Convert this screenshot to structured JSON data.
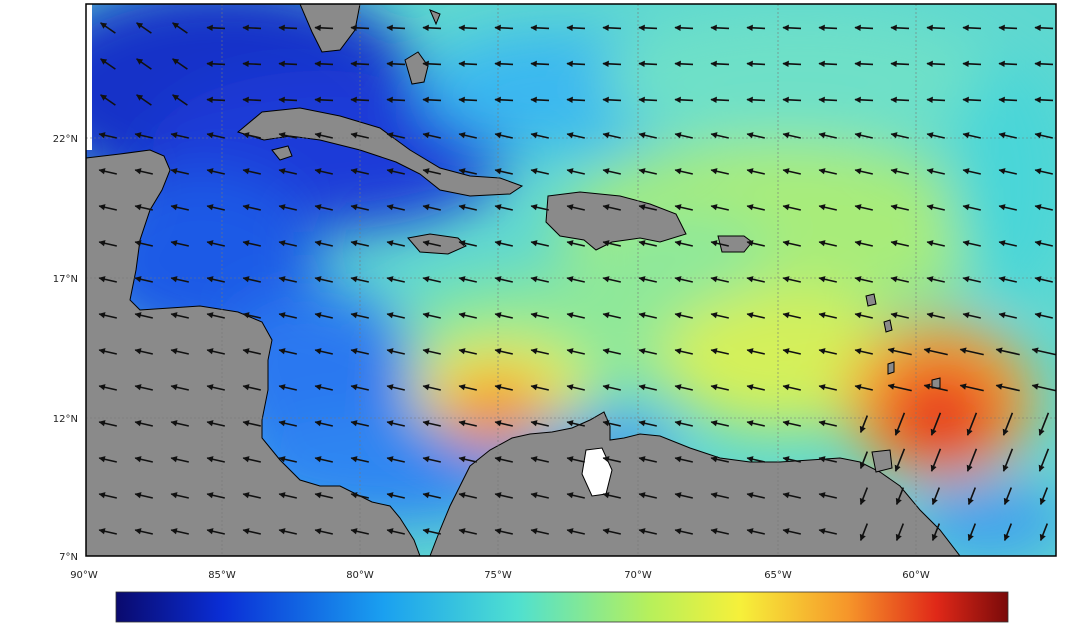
{
  "map": {
    "lat_labels": [
      "22°N",
      "17°N",
      "12°N",
      "7°N"
    ],
    "lon_labels": [
      "90°W",
      "85°W",
      "80°W",
      "75°W",
      "70°W",
      "65°W",
      "60°W"
    ],
    "colorbar": {
      "colors": [
        "#0a0a6e",
        "#0a2ed6",
        "#1aa0f0",
        "#4fe0d0",
        "#b8f05a",
        "#f6f03a",
        "#f6962a",
        "#e02818",
        "#7a0a0a"
      ]
    },
    "colors": {
      "land": "#8a8a8a",
      "coast": "#000000",
      "arrow": "#111111",
      "grid": "#777777"
    }
  }
}
